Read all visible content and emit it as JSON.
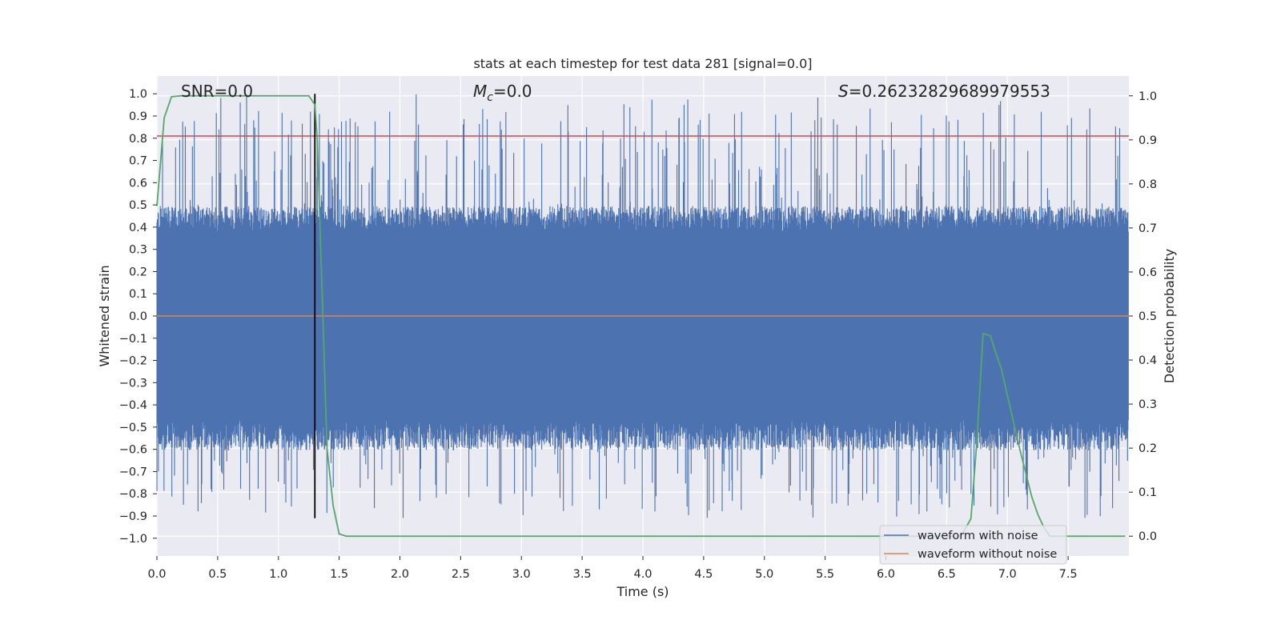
{
  "chart_data": {
    "type": "line",
    "title": "stats at each timestep for test data 281 [signal=0.0]",
    "xlabel": "Time (s)",
    "ylabel": "Whitened strain",
    "y2label": "Detection probability",
    "xlim": [
      0.0,
      8.0
    ],
    "ylim": [
      -1.08,
      1.08
    ],
    "y2lim": [
      -0.045,
      1.045
    ],
    "x_ticks": [
      "0.0",
      "0.5",
      "1.0",
      "1.5",
      "2.0",
      "2.5",
      "3.0",
      "3.5",
      "4.0",
      "4.5",
      "5.0",
      "5.5",
      "6.0",
      "6.5",
      "7.0",
      "7.5"
    ],
    "y_ticks": [
      "1.0",
      "0.9",
      "0.8",
      "0.7",
      "0.6",
      "0.5",
      "0.4",
      "0.3",
      "0.2",
      "0.1",
      "0.0",
      "-0.1",
      "-0.2",
      "-0.3",
      "-0.4",
      "-0.5",
      "-0.6",
      "-0.7",
      "-0.8",
      "-0.9",
      "-1.0"
    ],
    "y2_ticks": [
      "1.0",
      "0.9",
      "0.8",
      "0.7",
      "0.6",
      "0.5",
      "0.4",
      "0.3",
      "0.2",
      "0.1",
      "0.0"
    ],
    "grid": true,
    "legend_position": "lower-right",
    "annotations": {
      "snr": "SNR=0.0",
      "mc_symbol": "M",
      "mc_sub": "c",
      "mc_value": "=0.0",
      "s_symbol": "S",
      "s_value": "=0.26232829689979553"
    },
    "series": [
      {
        "name": "waveform with noise",
        "color": "#4c72b0",
        "style": "noise band, approximately within [-0.93, 1.0]",
        "x_range": [
          0.0,
          8.0
        ],
        "band_limits": [
          -0.55,
          0.45
        ]
      },
      {
        "name": "waveform without noise",
        "color": "#dd8452",
        "x": [
          0.0,
          8.0
        ],
        "y": [
          0.0,
          0.0
        ]
      },
      {
        "axis": "right",
        "color": "#55a868",
        "x": [
          0.0,
          0.06,
          0.12,
          0.2,
          0.5,
          0.8,
          1.0,
          1.25,
          1.3,
          1.32,
          1.36,
          1.4,
          1.45,
          1.5,
          1.56,
          2.0,
          3.0,
          4.0,
          5.0,
          6.0,
          6.5,
          6.62,
          6.7,
          6.75,
          6.8,
          6.86,
          6.9,
          6.95,
          7.0,
          7.1,
          7.2,
          7.25,
          7.3,
          7.35,
          7.5,
          7.97
        ],
        "y": [
          0.75,
          0.95,
          0.998,
          1.0,
          1.0,
          1.0,
          1.0,
          1.0,
          0.98,
          0.9,
          0.55,
          0.2,
          0.07,
          0.005,
          0.0,
          0.0,
          0.0,
          0.0,
          0.0,
          0.0,
          0.0,
          0.0,
          0.04,
          0.22,
          0.46,
          0.455,
          0.42,
          0.38,
          0.32,
          0.2,
          0.09,
          0.05,
          0.02,
          0.0,
          0.0,
          0.0
        ]
      },
      {
        "axis": "left",
        "color": "#000000",
        "style": "vertical line",
        "x": [
          1.3,
          1.3
        ],
        "y": [
          -0.91,
          1.0
        ]
      },
      {
        "axis": "left",
        "color": "#c44e52",
        "style": "horizontal line",
        "x": [
          0.0,
          8.0
        ],
        "y": [
          0.81,
          0.81
        ]
      }
    ],
    "legend_entries": [
      {
        "label": "waveform with noise",
        "color": "#4c72b0"
      },
      {
        "label": "waveform without noise",
        "color": "#dd8452"
      }
    ],
    "colors": {
      "background": "#eaeaf2",
      "grid": "#ffffff",
      "noise": "#4c72b0",
      "clean": "#dd8452",
      "probability": "#55a868",
      "threshold": "#c44e52",
      "marker": "#000000"
    }
  }
}
